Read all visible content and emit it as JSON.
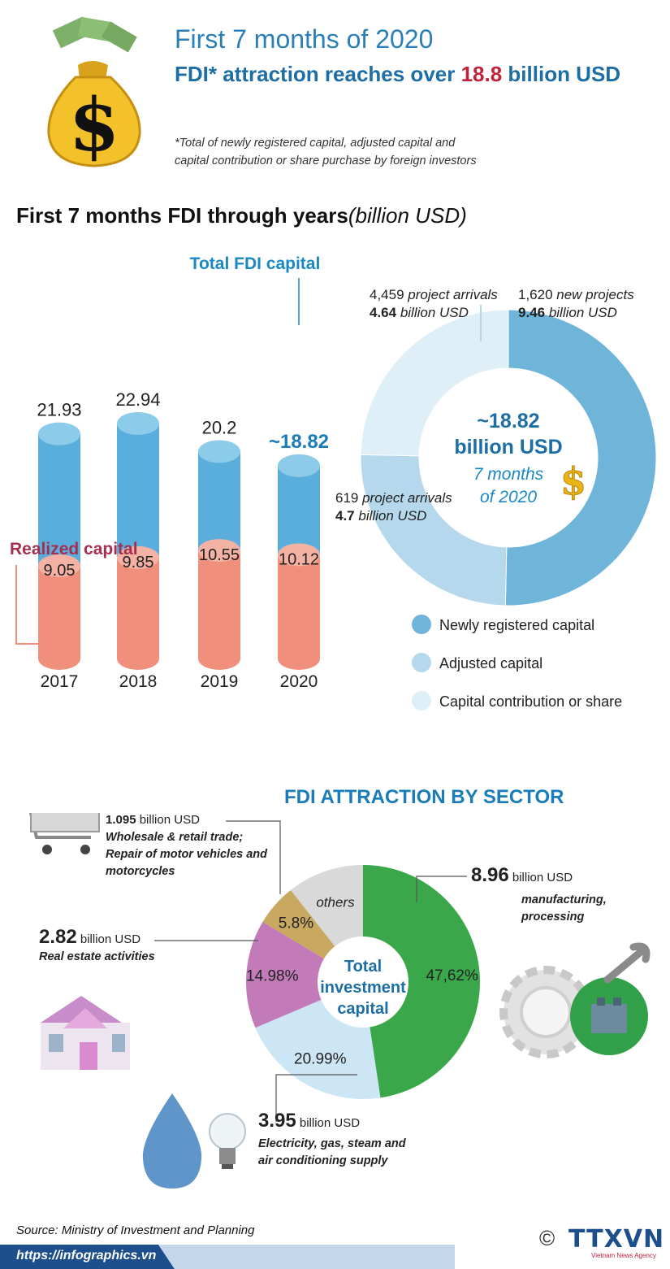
{
  "header": {
    "title_line1": "First 7 months of 2020",
    "title_line2_prefix": "FDI* attraction reaches over ",
    "title_line2_value": "18.8",
    "title_line2_suffix": " billion USD",
    "footnote_line1": "*Total of newly registered capital, adjusted capital and",
    "footnote_line2": "capital contribution or share purchase by foreign investors"
  },
  "section1": {
    "title": "First 7 months FDI through years",
    "unit": "(billion USD)",
    "total_label": "Total FDI capital",
    "realized_label": "Realized capital"
  },
  "donut": {
    "center_value": "~18.82",
    "center_unit": "billion USD",
    "center_sub1": "7 months",
    "center_sub2": "of 2020",
    "annotations": {
      "arrivals_count": "4,459",
      "arrivals_text": " project arrivals",
      "arrivals_value": "4.64",
      "arrivals_unit": " billion USD",
      "new_count": "1,620",
      "new_text": "  new projects",
      "new_value": "9.46",
      "new_unit": " billion USD",
      "adjusted_count": "619",
      "adjusted_text": " project arrivals",
      "adjusted_value": "4.7",
      "adjusted_unit": " billion USD"
    },
    "legend": [
      {
        "label": "Newly registered capital",
        "color": "#6fb4d9"
      },
      {
        "label": "Adjusted capital",
        "color": "#b5d8ec"
      },
      {
        "label": "Capital contribution or share",
        "color": "#deeff8"
      }
    ]
  },
  "section2": {
    "title": "FDI ATTRACTION BY SECTOR",
    "center_line1": "Total",
    "center_line2": "investment",
    "center_line3": "capital",
    "wholesale_value": "1.095",
    "wholesale_unit": " billion USD",
    "wholesale_desc1": "Wholesale & retail trade;",
    "wholesale_desc2": "Repair of motor vehicles and",
    "wholesale_desc3": "motorcycles",
    "realestate_value": "2.82",
    "realestate_unit": " billion USD",
    "realestate_desc": "Real estate activities",
    "manufacturing_value": "8.96",
    "manufacturing_unit": " billion USD",
    "manufacturing_desc1": "manufacturing,",
    "manufacturing_desc2": "processing",
    "electricity_value": "3.95",
    "electricity_unit": " billion USD",
    "electricity_desc1": "Electricity, gas, steam and",
    "electricity_desc2": "air conditioning supply"
  },
  "footer": {
    "source": "Source: Ministry of Investment and Planning",
    "url": "https://infographics.vn",
    "copyright": "©",
    "logo": "TTXVN",
    "agency": "Vietnam News Agency"
  },
  "chart_data": [
    {
      "type": "bar",
      "title": "First 7 months FDI through years (billion USD)",
      "categories": [
        "2017",
        "2018",
        "2019",
        "2020"
      ],
      "series": [
        {
          "name": "Total FDI capital",
          "values": [
            21.93,
            22.94,
            20.2,
            18.82
          ],
          "labels": [
            "21.93",
            "22.94",
            "20.2",
            "~18.82"
          ],
          "color": "#5aaedc"
        },
        {
          "name": "Realized capital",
          "values": [
            9.05,
            9.85,
            10.55,
            10.12
          ],
          "labels": [
            "9.05",
            "9.85",
            "10.55",
            "10.12"
          ],
          "color": "#ef8f7c"
        }
      ],
      "ylim": [
        0,
        25
      ]
    },
    {
      "type": "pie",
      "title": "7 months of 2020 FDI composition",
      "total": 18.82,
      "labels": [
        "Newly registered capital",
        "Adjusted capital",
        "Capital contribution or share"
      ],
      "values": [
        9.46,
        4.7,
        4.64
      ],
      "colors": [
        "#6fb4d9",
        "#b5d8ec",
        "#deeff8"
      ]
    },
    {
      "type": "pie",
      "title": "FDI ATTRACTION BY SECTOR",
      "labels": [
        "Manufacturing, processing",
        "Electricity, gas, steam and air conditioning supply",
        "Real estate activities",
        "Wholesale & retail trade",
        "Others"
      ],
      "values": [
        47.62,
        20.99,
        14.98,
        5.8,
        10.61
      ],
      "value_labels": [
        "47,62%",
        "20.99%",
        "14.98%",
        "5.8%",
        "others"
      ],
      "colors": [
        "#3aa84a",
        "#cde6f5",
        "#c27ab8",
        "#c9a961",
        "#d9d9d9"
      ]
    }
  ]
}
